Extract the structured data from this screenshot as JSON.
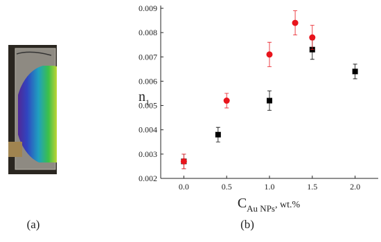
{
  "chart_data": {
    "type": "scatter",
    "y_label": {
      "main": "n",
      "sub": "1"
    },
    "x_label": {
      "main": "C",
      "sub": "Au NPs",
      "suffix": ", wt.%"
    },
    "xlim": [
      -0.27,
      2.27
    ],
    "xticks": [
      {
        "value": 0,
        "label": "0.0"
      },
      {
        "value": 0.5,
        "label": "0.5"
      },
      {
        "value": 1,
        "label": "1.0"
      },
      {
        "value": 1.5,
        "label": "1.5"
      },
      {
        "value": 2,
        "label": "2.0"
      }
    ],
    "ylim": [
      0.002,
      0.009
    ],
    "yticks": [
      0.002,
      0.003,
      0.004,
      0.005,
      0.006,
      0.007,
      0.008,
      0.009
    ],
    "series": [
      {
        "color": "#000000",
        "marker": "square",
        "x": [
          0,
          0.4,
          1,
          1.5,
          2
        ],
        "values": [
          0.0027,
          0.0038,
          0.0052,
          0.0073,
          0.0064
        ],
        "errors": [
          0.0003,
          0.0003,
          0.0004,
          0.0004,
          0.0003
        ]
      },
      {
        "color": "#e8141c",
        "marker": "circle",
        "x": [
          0,
          0.5,
          1,
          1.3,
          1.5
        ],
        "values": [
          0.0027,
          0.0052,
          0.0071,
          0.0084,
          0.0078
        ],
        "errors": [
          0.0003,
          0.0003,
          0.0005,
          0.0005,
          0.0005
        ]
      }
    ]
  },
  "panel_labels": [
    "(a)",
    "(b)"
  ]
}
